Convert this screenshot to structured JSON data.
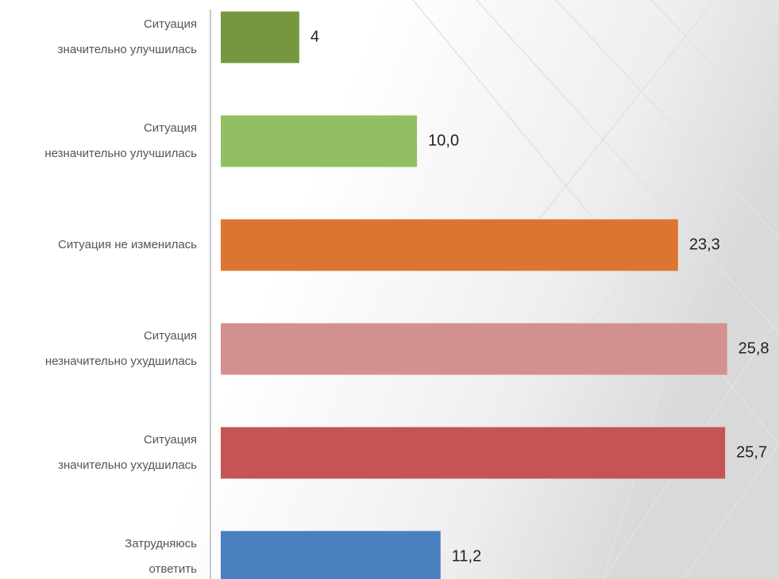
{
  "chart_data": {
    "type": "barh",
    "categories": [
      [
        "Ситуация",
        "значительно улучшилась"
      ],
      [
        "Ситуация",
        "незначительно улучшилась"
      ],
      [
        "Ситуация не изменилась"
      ],
      [
        "Ситуация",
        "незначительно ухудшилась"
      ],
      [
        "Ситуация",
        "значительно ухудшилась"
      ],
      [
        "Затрудняюсь",
        "ответить"
      ]
    ],
    "values": [
      4,
      10.0,
      23.3,
      25.8,
      25.7,
      11.2
    ],
    "value_labels": [
      "4",
      "10,0",
      "23,3",
      "25,8",
      "25,7",
      "11,2"
    ],
    "colors": [
      "#77973f",
      "#93bf63",
      "#dc7530",
      "#d39090",
      "#c45554",
      "#4a7fc0"
    ],
    "xlim": [
      0,
      28
    ]
  }
}
